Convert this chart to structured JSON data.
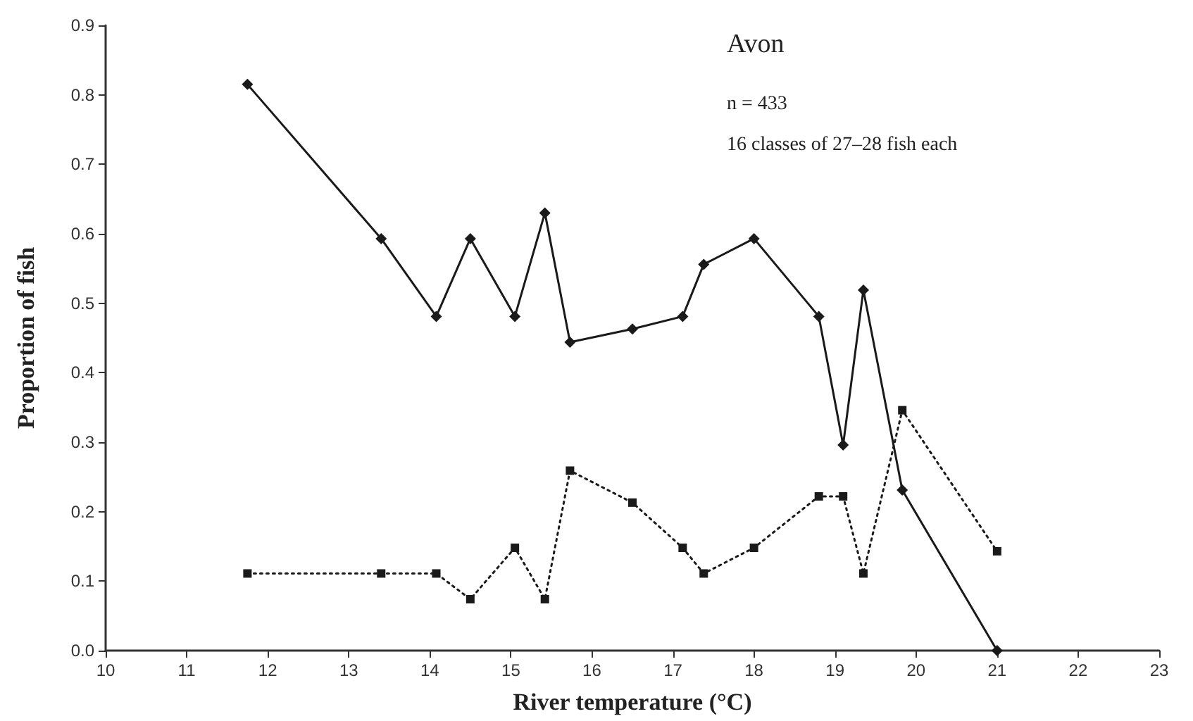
{
  "chart_data": {
    "type": "line",
    "xlabel": "River temperature (°C)",
    "ylabel": "Proportion of fish",
    "annotations": [
      "Avon",
      "n = 433",
      "16 classes of 27–28 fish each"
    ],
    "xlim": [
      10,
      23
    ],
    "xticks": [
      10,
      11,
      12,
      13,
      14,
      15,
      16,
      17,
      18,
      19,
      20,
      21,
      22,
      23
    ],
    "ylim": [
      0,
      0.9
    ],
    "yticks": [
      {
        "value": 0,
        "label": "0.0"
      },
      0.1,
      0.2,
      0.3,
      0.4,
      0.5,
      0.6,
      0.7,
      0.8,
      0.9
    ],
    "series": [
      {
        "color": "#1a1a1a",
        "marker": "diamond",
        "line_style": "solid",
        "x": [
          11.75,
          13.4,
          14.08,
          14.5,
          15.05,
          15.42,
          15.73,
          16.5,
          17.12,
          17.38,
          18.0,
          18.8,
          19.1,
          19.35,
          19.83,
          21.0
        ],
        "values": [
          0.815,
          0.593,
          0.481,
          0.593,
          0.481,
          0.63,
          0.444,
          0.463,
          0.481,
          0.556,
          0.593,
          0.481,
          0.296,
          0.519,
          0.231,
          0.0
        ]
      },
      {
        "color": "#1a1a1a",
        "marker": "square",
        "line_style": "dotted",
        "x": [
          11.75,
          13.4,
          14.08,
          14.5,
          15.05,
          15.42,
          15.73,
          16.5,
          17.12,
          17.38,
          18.0,
          18.8,
          19.1,
          19.35,
          19.83,
          21.0
        ],
        "values": [
          0.111,
          0.111,
          0.111,
          0.074,
          0.148,
          0.074,
          0.259,
          0.213,
          0.148,
          0.111,
          0.148,
          0.222,
          0.222,
          0.111,
          0.346,
          0.143
        ]
      }
    ]
  }
}
